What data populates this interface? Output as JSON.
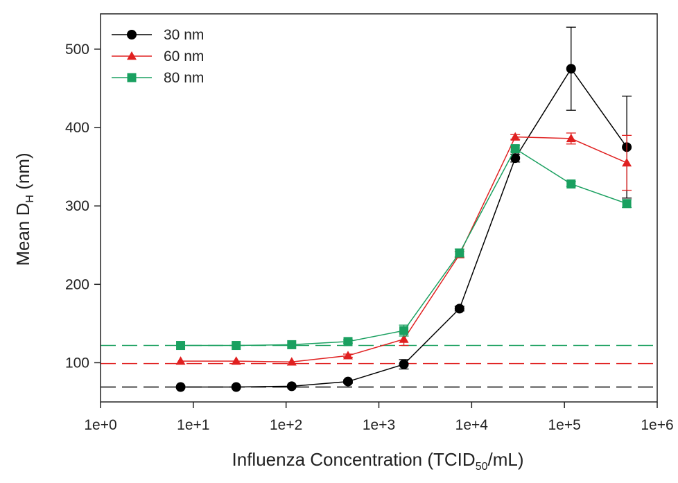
{
  "chart_data": {
    "type": "line",
    "xlabel": "Influenza Concentration (TCID",
    "xlabel_sub": "50",
    "xlabel_suffix": "/mL)",
    "ylabel": "Mean D",
    "ylabel_sub": "H",
    "ylabel_suffix": " (nm)",
    "x_scale": "log",
    "xlim": [
      1,
      1000000
    ],
    "ylim": [
      50,
      545
    ],
    "x_ticks": [
      {
        "value": 1,
        "label": "1e+0"
      },
      {
        "value": 10,
        "label": "1e+1"
      },
      {
        "value": 100,
        "label": "1e+2"
      },
      {
        "value": 1000,
        "label": "1e+3"
      },
      {
        "value": 10000,
        "label": "1e+4"
      },
      {
        "value": 100000,
        "label": "1e+5"
      },
      {
        "value": 1000000,
        "label": "1e+6"
      }
    ],
    "y_ticks": [
      {
        "value": 100,
        "label": "100"
      },
      {
        "value": 200,
        "label": "200"
      },
      {
        "value": 300,
        "label": "300"
      },
      {
        "value": 400,
        "label": "400"
      },
      {
        "value": 500,
        "label": "500"
      }
    ],
    "grid": false,
    "legend_position": "top-left",
    "series": [
      {
        "name": "30 nm",
        "color": "#000000",
        "marker": "circle",
        "baseline": 69,
        "x": [
          7.3,
          29,
          115,
          465,
          1860,
          7400,
          29500,
          118000,
          470000
        ],
        "y": [
          69,
          69,
          70,
          76,
          98,
          169,
          361,
          475,
          375
        ],
        "err": [
          1,
          1,
          1,
          2,
          6,
          3,
          5,
          53,
          65
        ]
      },
      {
        "name": "60 nm",
        "color": "#e02020",
        "marker": "triangle",
        "baseline": 99,
        "x": [
          7.3,
          29,
          115,
          465,
          1860,
          7400,
          29500,
          118000,
          470000
        ],
        "y": [
          102,
          102,
          101,
          109,
          130,
          238,
          388,
          386,
          355
        ],
        "err": [
          1,
          1,
          1,
          2,
          8,
          4,
          3,
          7,
          35
        ]
      },
      {
        "name": "80 nm",
        "color": "#1aa060",
        "marker": "square",
        "baseline": 122,
        "x": [
          7.3,
          29,
          115,
          465,
          1860,
          7400,
          29500,
          118000,
          470000
        ],
        "y": [
          122,
          122,
          123,
          127,
          141,
          240,
          373,
          328,
          303
        ],
        "err": [
          1,
          1,
          1,
          2,
          7,
          5,
          4,
          3,
          5
        ]
      }
    ]
  }
}
